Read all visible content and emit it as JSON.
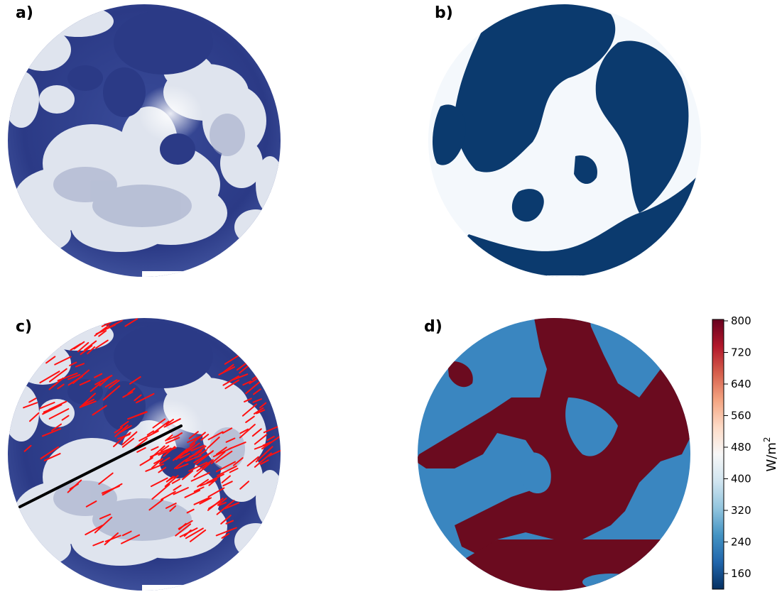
{
  "panels": {
    "a": {
      "label": "a)"
    },
    "b": {
      "label": "b)"
    },
    "c": {
      "label": "c)"
    },
    "d": {
      "label": "d)"
    }
  },
  "colorbar": {
    "ticks": [
      "800",
      "720",
      "640",
      "560",
      "480",
      "400",
      "320",
      "240",
      "160"
    ],
    "unit_main": "W/m",
    "unit_sup": "2",
    "colors": [
      "#67001f",
      "#b2182b",
      "#d6604d",
      "#f4a582",
      "#fddbc7",
      "#f7f7f7",
      "#d1e5f0",
      "#92c5de",
      "#4393c3",
      "#2166ac",
      "#053061"
    ]
  },
  "colors": {
    "sky_blue": "#2b3a86",
    "cloud_white": "#e4e8f0",
    "mask_dark": "#0b3a6e",
    "mask_light": "#f4f8fc",
    "irradiance_high": "#6b0b1f",
    "irradiance_low": "#3a86c0",
    "vector_red": "#ff1010",
    "trajectory_black": "#000000"
  }
}
